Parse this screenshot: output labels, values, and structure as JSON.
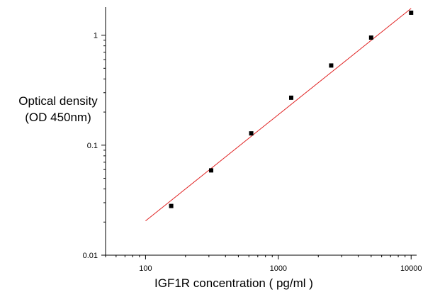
{
  "chart_data": {
    "type": "scatter",
    "xlabel": "IGF1R concentration ( pg/ml )",
    "ylabel_lines": [
      "Optical density",
      "(OD 450nm)"
    ],
    "x_scale": "log",
    "y_scale": "log",
    "xlim": [
      50,
      11000
    ],
    "ylim": [
      0.01,
      1.8
    ],
    "x_ticks": [
      {
        "value": 100,
        "label": "100"
      },
      {
        "value": 1000,
        "label": "1000"
      },
      {
        "value": 10000,
        "label": "10000"
      }
    ],
    "y_ticks": [
      {
        "value": 1,
        "label": "1"
      },
      {
        "value": 0.1,
        "label": "0.1"
      },
      {
        "value": 0.01,
        "label": "0.01"
      }
    ],
    "points": [
      {
        "x": 156,
        "y": 0.028
      },
      {
        "x": 312,
        "y": 0.059
      },
      {
        "x": 625,
        "y": 0.128
      },
      {
        "x": 1250,
        "y": 0.27
      },
      {
        "x": 2500,
        "y": 0.53
      },
      {
        "x": 5000,
        "y": 0.95
      },
      {
        "x": 10000,
        "y": 1.6
      }
    ],
    "fit_line": {
      "x": [
        100,
        10000
      ],
      "y": [
        0.0205,
        1.75
      ]
    },
    "grid": false,
    "colors": {
      "points": "#000000",
      "fit_line": "#e02020",
      "axes": "#000000"
    }
  }
}
